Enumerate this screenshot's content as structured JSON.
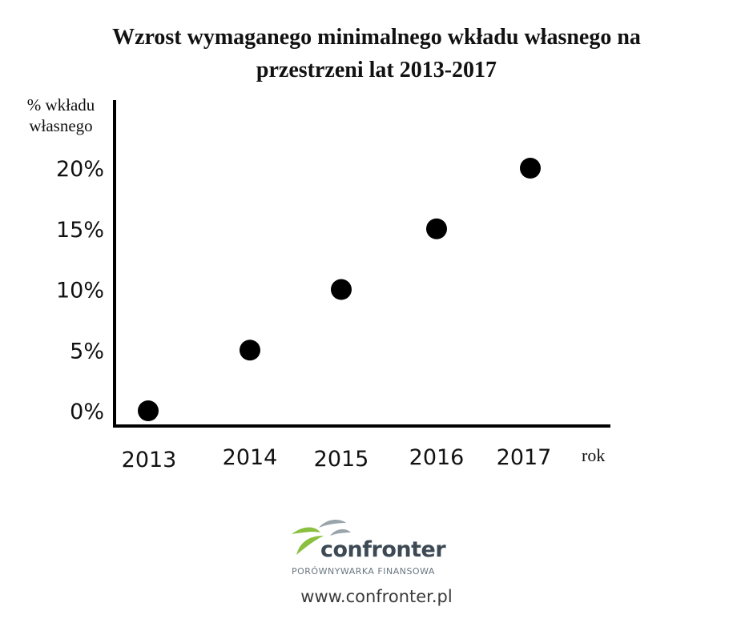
{
  "chart_data": {
    "type": "scatter",
    "title": "Wzrost wymaganego minimalnego wkładu własnego na przestrzeni lat 2013-2017",
    "title_lines": [
      "Wzrost wymaganego minimalnego wkładu własnego na",
      "przestrzeni lat 2013-2017"
    ],
    "ylabel_lines": [
      "% wkładu",
      "własnego"
    ],
    "xlabel": "rok",
    "categories": [
      "2013",
      "2014",
      "2015",
      "2016",
      "2017"
    ],
    "values": [
      0,
      5,
      10,
      15,
      20
    ],
    "yticks": [
      "0%",
      "5%",
      "10%",
      "15%",
      "20%"
    ],
    "ylim": [
      0,
      20
    ],
    "grid": false,
    "marker_color": "#000000"
  },
  "branding": {
    "logo_text": "confronter",
    "logo_sub": "PORÓWNYWARKA FINANSOWA",
    "url": "www.confronter.pl",
    "colors": {
      "green": "#8bbf3f",
      "gray": "#9aa4ab",
      "dark": "#3d4a55"
    }
  }
}
